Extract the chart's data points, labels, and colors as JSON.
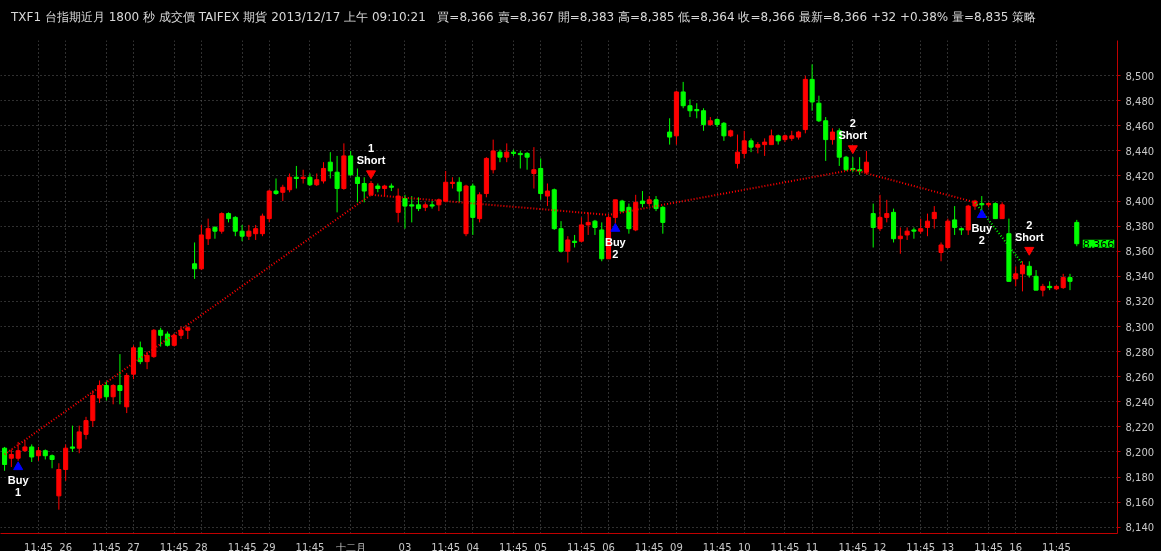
{
  "chart_data": {
    "type": "candlestick",
    "title": "TXF1  台指期近月  1800 秒  成交價  TAIFEX  期貨  2013/12/17  上午 09:10:21",
    "subtitle": "買=8,366  賣=8,367  開=8,383  高=8,385  低=8,364  收=8,366  最新=8,366  +32  +0.38%  量=8,835  策略",
    "annotations": [
      "Buy\n1",
      "Buy\n2",
      "Buy\n2",
      "1\nShort",
      "2\nShort",
      "2\nShort"
    ],
    "categories": [
      null,
      null,
      null,
      null,
      null,
      "11:45",
      null,
      null,
      null,
      "26",
      null,
      null,
      null,
      null,
      null,
      "11:45",
      null,
      null,
      null,
      "27",
      null,
      null,
      null,
      null,
      null,
      "11:45",
      null,
      null,
      null,
      "28",
      null,
      null,
      null,
      null,
      null,
      "11:45",
      null,
      null,
      null,
      "29",
      null,
      null,
      null,
      null,
      null,
      "11:45",
      null,
      null,
      null,
      null,
      null,
      "十二月",
      null,
      null,
      null,
      null,
      null,
      null,
      null,
      "03",
      null,
      null,
      null,
      null,
      null,
      "11:45",
      null,
      null,
      null,
      "04",
      null,
      null,
      null,
      null,
      null,
      "11:45",
      null,
      null,
      null,
      "05",
      null,
      null,
      null,
      null,
      null,
      "11:45",
      null,
      null,
      null,
      "06",
      null,
      null,
      null,
      null,
      null,
      "11:45",
      null,
      null,
      null,
      "09",
      null,
      null,
      null,
      null,
      null,
      "11:45",
      null,
      null,
      null,
      "10",
      null,
      null,
      null,
      null,
      null,
      "11:45",
      null,
      null,
      null,
      "11",
      null,
      null,
      null,
      null,
      null,
      "11:45",
      null,
      null,
      null,
      "12",
      null,
      null,
      null,
      null,
      null,
      "11:45",
      null,
      null,
      null,
      "13",
      null,
      null,
      null,
      null,
      null,
      "11:45",
      null,
      null,
      null,
      "16",
      null,
      null,
      null,
      null,
      null,
      "11:45",
      null,
      null,
      null
    ],
    "ohlc": [
      [
        8203,
        8204,
        8185,
        8190
      ],
      [
        8195,
        8202,
        8188,
        8198
      ],
      [
        8195,
        8208,
        8193,
        8201
      ],
      [
        8201,
        8209,
        8200,
        8204
      ],
      [
        8204,
        8206,
        8192,
        8196
      ],
      [
        8197,
        8204,
        8193,
        8201
      ],
      [
        8201,
        8202,
        8194,
        8197
      ],
      [
        8197,
        8198,
        8187,
        8194
      ],
      [
        8165,
        8191,
        8154,
        8186
      ],
      [
        8186,
        8206,
        8177,
        8203
      ],
      [
        8204,
        8221,
        8200,
        8203
      ],
      [
        8203,
        8221,
        8199,
        8216
      ],
      [
        8214,
        8228,
        8210,
        8225
      ],
      [
        8225,
        8249,
        8220,
        8245
      ],
      [
        8243,
        8257,
        8239,
        8253
      ],
      [
        8253,
        8256,
        8241,
        8244
      ],
      [
        8244,
        8254,
        8238,
        8253
      ],
      [
        8253,
        8278,
        8238,
        8249
      ],
      [
        8236,
        8263,
        8231,
        8261
      ],
      [
        8262,
        8285,
        8258,
        8283
      ],
      [
        8283,
        8288,
        8270,
        8272
      ],
      [
        8272,
        8280,
        8266,
        8277
      ],
      [
        8276,
        8298,
        8275,
        8297
      ],
      [
        8297,
        8299,
        8284,
        8293
      ],
      [
        8294,
        8296,
        8284,
        8285
      ],
      [
        8285,
        8294,
        8284,
        8293
      ],
      [
        8293,
        8300,
        8290,
        8297
      ],
      [
        8297,
        8300,
        8290,
        8299
      ],
      [
        8350,
        8367,
        8338,
        8346
      ],
      [
        8346,
        8381,
        8345,
        8373
      ],
      [
        8370,
        8386,
        8365,
        8378
      ],
      [
        8379,
        8380,
        8370,
        8376
      ],
      [
        8376,
        8391,
        8374,
        8390
      ],
      [
        8390,
        8391,
        8383,
        8386
      ],
      [
        8387,
        8388,
        8372,
        8376
      ],
      [
        8376,
        8381,
        8368,
        8372
      ],
      [
        8372,
        8381,
        8369,
        8376
      ],
      [
        8374,
        8381,
        8369,
        8378
      ],
      [
        8374,
        8390,
        8372,
        8388
      ],
      [
        8386,
        8409,
        8383,
        8408
      ],
      [
        8408,
        8418,
        8405,
        8406
      ],
      [
        8407,
        8413,
        8400,
        8411
      ],
      [
        8409,
        8422,
        8407,
        8419
      ],
      [
        8419,
        8428,
        8410,
        8418
      ],
      [
        8418,
        8425,
        8414,
        8419
      ],
      [
        8419,
        8422,
        8412,
        8413
      ],
      [
        8413,
        8422,
        8412,
        8417
      ],
      [
        8416,
        8431,
        8414,
        8426
      ],
      [
        8431,
        8439,
        8418,
        8424
      ],
      [
        8423,
        8436,
        8391,
        8410
      ],
      [
        8410,
        8446,
        8409,
        8436
      ],
      [
        8436,
        8440,
        8420,
        8421
      ],
      [
        8419,
        8426,
        8399,
        8414
      ],
      [
        8414,
        8419,
        8399,
        8408
      ],
      [
        8405,
        8416,
        8404,
        8414
      ],
      [
        8412,
        8414,
        8407,
        8410
      ],
      [
        8410,
        8413,
        8404,
        8412
      ],
      [
        8412,
        8414,
        8408,
        8411
      ],
      [
        8391,
        8410,
        8383,
        8404
      ],
      [
        8402,
        8405,
        8378,
        8396
      ],
      [
        8397,
        8404,
        8383,
        8396
      ],
      [
        8397,
        8403,
        8392,
        8394
      ],
      [
        8395,
        8399,
        8392,
        8397
      ],
      [
        8397,
        8400,
        8394,
        8396
      ],
      [
        8397,
        8402,
        8392,
        8401
      ],
      [
        8400,
        8424,
        8399,
        8415
      ],
      [
        8414,
        8419,
        8410,
        8415
      ],
      [
        8415,
        8419,
        8399,
        8408
      ],
      [
        8374,
        8413,
        8372,
        8412
      ],
      [
        8412,
        8414,
        8373,
        8387
      ],
      [
        8386,
        8407,
        8383,
        8405
      ],
      [
        8406,
        8435,
        8403,
        8434
      ],
      [
        8425,
        8449,
        8422,
        8440
      ],
      [
        8439,
        8441,
        8431,
        8435
      ],
      [
        8435,
        8446,
        8431,
        8439
      ],
      [
        8439,
        8441,
        8436,
        8438
      ],
      [
        8438,
        8440,
        8426,
        8437
      ],
      [
        8438,
        8439,
        8425,
        8435
      ],
      [
        8422,
        8443,
        8410,
        8425
      ],
      [
        8426,
        8434,
        8401,
        8406
      ],
      [
        8404,
        8414,
        8396,
        8408
      ],
      [
        8409,
        8410,
        8377,
        8378
      ],
      [
        8378,
        8384,
        8359,
        8360
      ],
      [
        8360,
        8372,
        8351,
        8369
      ],
      [
        8368,
        8373,
        8363,
        8367
      ],
      [
        8368,
        8387,
        8367,
        8381
      ],
      [
        8381,
        8391,
        8373,
        8383
      ],
      [
        8384,
        8385,
        8373,
        8379
      ],
      [
        8377,
        8383,
        8352,
        8354
      ],
      [
        8354,
        8388,
        8354,
        8387
      ],
      [
        8387,
        8401,
        8382,
        8401
      ],
      [
        8400,
        8401,
        8391,
        8392
      ],
      [
        8395,
        8398,
        8374,
        8378
      ],
      [
        8377,
        8405,
        8376,
        8399
      ],
      [
        8400,
        8408,
        8395,
        8398
      ],
      [
        8398,
        8404,
        8396,
        8401
      ],
      [
        8401,
        8404,
        8392,
        8394
      ],
      [
        8395,
        8396,
        8374,
        8383
      ],
      [
        8455,
        8466,
        8445,
        8451
      ],
      [
        8452,
        8488,
        8445,
        8487
      ],
      [
        8487,
        8495,
        8474,
        8476
      ],
      [
        8476,
        8481,
        8467,
        8472
      ],
      [
        8473,
        8478,
        8466,
        8472
      ],
      [
        8472,
        8474,
        8456,
        8461
      ],
      [
        8461,
        8467,
        8460,
        8464
      ],
      [
        8465,
        8466,
        8459,
        8461
      ],
      [
        8462,
        8463,
        8448,
        8452
      ],
      [
        8452,
        8457,
        8451,
        8456
      ],
      [
        8430,
        8453,
        8426,
        8439
      ],
      [
        8438,
        8456,
        8434,
        8448
      ],
      [
        8448,
        8450,
        8439,
        8443
      ],
      [
        8443,
        8447,
        8438,
        8445
      ],
      [
        8445,
        8450,
        8436,
        8447
      ],
      [
        8445,
        8457,
        8445,
        8452
      ],
      [
        8452,
        8453,
        8445,
        8448
      ],
      [
        8449,
        8453,
        8447,
        8452
      ],
      [
        8450,
        8456,
        8448,
        8452
      ],
      [
        8451,
        8456,
        8449,
        8455
      ],
      [
        8457,
        8500,
        8454,
        8497
      ],
      [
        8497,
        8509,
        8472,
        8479
      ],
      [
        8478,
        8484,
        8463,
        8464
      ],
      [
        8464,
        8467,
        8432,
        8449
      ],
      [
        8449,
        8458,
        8445,
        8455
      ],
      [
        8456,
        8458,
        8428,
        8435
      ],
      [
        8435,
        8436,
        8424,
        8425
      ],
      [
        8426,
        8435,
        8423,
        8425
      ],
      [
        8425,
        8435,
        8421,
        8424
      ],
      [
        8423,
        8440,
        8421,
        8431
      ],
      [
        8390,
        8398,
        8363,
        8379
      ],
      [
        8378,
        8405,
        8376,
        8387
      ],
      [
        8387,
        8401,
        8383,
        8390
      ],
      [
        8391,
        8394,
        8367,
        8370
      ],
      [
        8370,
        8379,
        8358,
        8372
      ],
      [
        8373,
        8379,
        8369,
        8376
      ],
      [
        8377,
        8379,
        8370,
        8376
      ],
      [
        8376,
        8386,
        8374,
        8378
      ],
      [
        8379,
        8390,
        8372,
        8384
      ],
      [
        8386,
        8396,
        8378,
        8391
      ],
      [
        8359,
        8367,
        8352,
        8365
      ],
      [
        8363,
        8386,
        8362,
        8384
      ],
      [
        8385,
        8396,
        8373,
        8379
      ],
      [
        8378,
        8379,
        8373,
        8377
      ],
      [
        8377,
        8397,
        8373,
        8396
      ],
      [
        8396,
        8401,
        8393,
        8400
      ],
      [
        8398,
        8404,
        8391,
        8397
      ],
      [
        8397,
        8399,
        8395,
        8398
      ],
      [
        8398,
        8399,
        8386,
        8386
      ],
      [
        8386,
        8399,
        8386,
        8397
      ],
      [
        8374,
        8386,
        8336,
        8336
      ],
      [
        8338,
        8348,
        8332,
        8342
      ],
      [
        8342,
        8352,
        8328,
        8349
      ],
      [
        8348,
        8352,
        8339,
        8341
      ],
      [
        8340,
        8345,
        8329,
        8329
      ],
      [
        8329,
        8334,
        8324,
        8332
      ],
      [
        8332,
        8336,
        8329,
        8331
      ],
      [
        8330,
        8333,
        8329,
        8332
      ],
      [
        8331,
        8342,
        8330,
        8339
      ],
      [
        8339,
        8342,
        8329,
        8336
      ],
      [
        8383,
        8385,
        8364,
        8366
      ]
    ],
    "colors": [
      "#00ff00",
      "#ff0000",
      "#ff0000",
      "#ff0000",
      "#00ff00",
      "#ff0000",
      "#00ff00",
      "#00ff00",
      "#ff0000",
      "#ff0000",
      "#00ff00",
      "#ff0000",
      "#ff0000",
      "#ff0000",
      "#ff0000",
      "#00ff00",
      "#ff0000",
      "#00ff00",
      "#ff0000",
      "#ff0000",
      "#00ff00",
      "#ff0000",
      "#ff0000",
      "#00ff00",
      "#00ff00",
      "#ff0000",
      "#ff0000",
      "#ff0000",
      "#00ff00",
      "#ff0000",
      "#ff0000",
      "#00ff00",
      "#ff0000",
      "#00ff00",
      "#00ff00",
      "#00ff00",
      "#ff0000",
      "#ff0000",
      "#ff0000",
      "#ff0000",
      "#00ff00",
      "#ff0000",
      "#ff0000",
      "#00ff00",
      "#ff0000",
      "#00ff00",
      "#ff0000",
      "#ff0000",
      "#00ff00",
      "#00ff00",
      "#ff0000",
      "#00ff00",
      "#00ff00",
      "#00ff00",
      "#ff0000",
      "#00ff00",
      "#ff0000",
      "#00ff00",
      "#ff0000",
      "#00ff00",
      "#00ff00",
      "#00ff00",
      "#ff0000",
      "#00ff00",
      "#ff0000",
      "#ff0000",
      "#ff0000",
      "#00ff00",
      "#ff0000",
      "#00ff00",
      "#ff0000",
      "#ff0000",
      "#ff0000",
      "#00ff00",
      "#ff0000",
      "#00ff00",
      "#00ff00",
      "#00ff00",
      "#ff0000",
      "#00ff00",
      "#ff0000",
      "#00ff00",
      "#00ff00",
      "#ff0000",
      "#00ff00",
      "#ff0000",
      "#ff0000",
      "#00ff00",
      "#00ff00",
      "#ff0000",
      "#ff0000",
      "#00ff00",
      "#00ff00",
      "#ff0000",
      "#00ff00",
      "#ff0000",
      "#00ff00",
      "#00ff00",
      "#00ff00",
      "#ff0000",
      "#00ff00",
      "#00ff00",
      "#00ff00",
      "#00ff00",
      "#ff0000",
      "#00ff00",
      "#00ff00",
      "#ff0000",
      "#ff0000",
      "#ff0000",
      "#00ff00",
      "#ff0000",
      "#ff0000",
      "#ff0000",
      "#00ff00",
      "#ff0000",
      "#ff0000",
      "#ff0000",
      "#ff0000",
      "#00ff00",
      "#00ff00",
      "#00ff00",
      "#ff0000",
      "#00ff00",
      "#00ff00",
      "#00ff00",
      "#00ff00",
      "#ff0000",
      "#00ff00",
      "#ff0000",
      "#ff0000",
      "#00ff00",
      "#ff0000",
      "#ff0000",
      "#00ff00",
      "#ff0000",
      "#ff0000",
      "#ff0000",
      "#ff0000",
      "#ff0000",
      "#00ff00",
      "#00ff00",
      "#ff0000",
      "#ff0000",
      "#00ff00",
      "#ff0000",
      "#00ff00",
      "#ff0000",
      "#00ff00",
      "#ff0000",
      "#ff0000",
      "#00ff00",
      "#00ff00",
      "#ff0000",
      "#00ff00",
      "#ff0000",
      "#ff0000",
      "#00ff00",
      "#00ff00"
    ],
    "value_labels": [
      null,
      null,
      null,
      null,
      null,
      null,
      null,
      null,
      null,
      null,
      null,
      null,
      null,
      null,
      null,
      null,
      null,
      null,
      null,
      null,
      null,
      null,
      null,
      null,
      null,
      null,
      null,
      null,
      null,
      null,
      null,
      null,
      null,
      null,
      null,
      null,
      null,
      null,
      null,
      null,
      null,
      null,
      null,
      null,
      null,
      null,
      null,
      null,
      null,
      null,
      null,
      null,
      null,
      null,
      null,
      null,
      null,
      null,
      null,
      null,
      null,
      null,
      null,
      null,
      null,
      null,
      null,
      null,
      null,
      null,
      null,
      null,
      null,
      null,
      null,
      null,
      null,
      null,
      null,
      null,
      null,
      null,
      null,
      null,
      null,
      null,
      null,
      null,
      null,
      null,
      null,
      null,
      null,
      null,
      null,
      null,
      null,
      null,
      null,
      null,
      null,
      null,
      null,
      null,
      null,
      null,
      null,
      null,
      null,
      null,
      null,
      null,
      null,
      null,
      null,
      null,
      null,
      null,
      null,
      null,
      null,
      null,
      null,
      null,
      null,
      null,
      null,
      null,
      null,
      null,
      null,
      null,
      null,
      null,
      null,
      null,
      null,
      null,
      null,
      null,
      null,
      null,
      null,
      null,
      null,
      null,
      null,
      null,
      null,
      null,
      null,
      null,
      null,
      null,
      null,
      null,
      null,
      null,
      "8,366"
    ],
    "series": [
      {
        "type": "line",
        "color": "#ff0000",
        "line_style": "dotted",
        "values": [
          8198,
          null,
          null,
          null,
          null,
          null,
          null,
          null,
          null,
          null,
          null,
          null,
          null,
          null,
          null,
          null,
          null,
          null,
          null,
          null,
          null,
          null,
          null,
          null,
          null,
          null,
          null,
          null,
          null,
          null,
          null,
          null,
          null,
          null,
          null,
          null,
          null,
          null,
          null,
          null,
          null,
          null,
          null,
          null,
          null,
          null,
          null,
          null,
          null,
          null,
          null,
          null,
          null,
          null,
          8405,
          null,
          null,
          null,
          null,
          null,
          null,
          null,
          null,
          null,
          null,
          null,
          null,
          null,
          null,
          null,
          null,
          null,
          null,
          null,
          null,
          null,
          null,
          null,
          null,
          null,
          null,
          null,
          null,
          null,
          null,
          null,
          null,
          null,
          null,
          8389,
          null,
          null,
          null,
          null,
          null,
          null,
          null,
          null,
          null,
          null,
          null,
          null,
          null,
          null,
          null,
          null,
          null,
          null,
          null,
          null,
          null,
          null,
          null,
          null,
          null,
          null,
          null,
          null,
          null,
          null,
          null,
          null,
          null,
          null,
          null,
          8425,
          null,
          null,
          null,
          null,
          null,
          null,
          null,
          null,
          null,
          null,
          null,
          null,
          null,
          null,
          null,
          null,
          null,
          8399,
          null,
          null,
          null,
          null,
          null,
          null,
          null,
          null,
          null,
          null,
          null,
          null,
          null,
          null,
          null
        ]
      },
      {
        "type": "line",
        "color": "#00ff00",
        "line_style": "dotted",
        "values": [
          null,
          null,
          null,
          null,
          null,
          null,
          null,
          null,
          null,
          null,
          null,
          null,
          null,
          null,
          null,
          null,
          null,
          null,
          null,
          null,
          null,
          null,
          null,
          null,
          null,
          null,
          null,
          null,
          null,
          null,
          null,
          null,
          null,
          null,
          null,
          null,
          null,
          null,
          null,
          null,
          null,
          null,
          null,
          null,
          null,
          null,
          null,
          null,
          null,
          null,
          null,
          null,
          null,
          null,
          null,
          null,
          null,
          null,
          null,
          null,
          null,
          null,
          null,
          null,
          null,
          null,
          null,
          null,
          null,
          null,
          null,
          null,
          null,
          null,
          null,
          null,
          null,
          null,
          null,
          null,
          null,
          null,
          null,
          null,
          null,
          null,
          null,
          null,
          null,
          null,
          null,
          null,
          null,
          null,
          null,
          null,
          null,
          null,
          null,
          null,
          null,
          null,
          null,
          null,
          null,
          null,
          null,
          null,
          null,
          null,
          null,
          null,
          null,
          null,
          null,
          null,
          null,
          null,
          null,
          null,
          null,
          null,
          null,
          null,
          null,
          null,
          null,
          null,
          null,
          null,
          null,
          null,
          null,
          null,
          null,
          null,
          null,
          null,
          null,
          null,
          null,
          null,
          null,
          8399,
          null,
          null,
          null,
          null,
          null,
          null,
          8350,
          null,
          null,
          null,
          null,
          null,
          null,
          null,
          null
        ]
      },
      {
        "type": "scatter",
        "color": "#0000ff",
        "marker": "triangle",
        "values": [
          null,
          null,
          8188,
          null,
          null,
          null,
          null,
          null,
          null,
          null,
          null,
          null,
          null,
          null,
          null,
          null,
          null,
          null,
          null,
          null,
          null,
          null,
          null,
          null,
          null,
          null,
          null,
          null,
          null,
          null,
          null,
          null,
          null,
          null,
          null,
          null,
          null,
          null,
          null,
          null,
          null,
          null,
          null,
          null,
          null,
          null,
          null,
          null,
          null,
          null,
          null,
          null,
          null,
          null,
          null,
          null,
          null,
          null,
          null,
          null,
          null,
          null,
          null,
          null,
          null,
          null,
          null,
          null,
          null,
          null,
          null,
          null,
          null,
          null,
          null,
          null,
          null,
          null,
          null,
          null,
          null,
          null,
          null,
          null,
          null,
          null,
          null,
          null,
          null,
          null,
          8378,
          null,
          null,
          null,
          null,
          null,
          null,
          null,
          null,
          null,
          null,
          null,
          null,
          null,
          null,
          null,
          null,
          null,
          null,
          null,
          null,
          null,
          null,
          null,
          null,
          null,
          null,
          null,
          null,
          null,
          null,
          null,
          null,
          null,
          null,
          null,
          null,
          null,
          null,
          null,
          null,
          null,
          null,
          null,
          null,
          null,
          null,
          null,
          null,
          null,
          null,
          null,
          null,
          null,
          8389,
          null,
          null,
          null,
          null,
          null,
          null,
          null,
          null,
          null,
          null,
          null,
          null,
          null,
          null
        ]
      },
      {
        "type": "scatter",
        "color": "#ff0000",
        "marker": "triangle",
        "values": [
          null,
          null,
          null,
          null,
          null,
          null,
          null,
          null,
          null,
          null,
          null,
          null,
          null,
          null,
          null,
          null,
          null,
          null,
          null,
          null,
          null,
          null,
          null,
          null,
          null,
          null,
          null,
          null,
          null,
          null,
          null,
          null,
          null,
          null,
          null,
          null,
          null,
          null,
          null,
          null,
          null,
          null,
          null,
          null,
          null,
          null,
          null,
          null,
          null,
          null,
          null,
          null,
          null,
          null,
          8422,
          null,
          null,
          null,
          null,
          null,
          null,
          null,
          null,
          null,
          null,
          null,
          null,
          null,
          null,
          null,
          null,
          null,
          null,
          null,
          null,
          null,
          null,
          null,
          null,
          null,
          null,
          null,
          null,
          null,
          null,
          null,
          null,
          null,
          null,
          null,
          null,
          null,
          null,
          null,
          null,
          null,
          null,
          null,
          null,
          null,
          null,
          null,
          null,
          null,
          null,
          null,
          null,
          null,
          null,
          null,
          null,
          null,
          null,
          null,
          null,
          null,
          null,
          null,
          null,
          null,
          null,
          null,
          null,
          null,
          null,
          8442,
          null,
          null,
          null,
          null,
          null,
          null,
          null,
          null,
          null,
          null,
          null,
          null,
          null,
          null,
          null,
          null,
          null,
          null,
          null,
          null,
          null,
          null,
          null,
          null,
          null,
          8361,
          null,
          null,
          null,
          null,
          null,
          null,
          null
        ]
      }
    ],
    "ylim": [
      8135,
      8528
    ],
    "yticks": [
      {
        "value": 8140,
        "label": "8,140"
      },
      {
        "value": 8160,
        "label": "8,160"
      },
      {
        "value": 8180,
        "label": "8,180"
      },
      {
        "value": 8200,
        "label": "8,200"
      },
      {
        "value": 8220,
        "label": "8,220"
      },
      {
        "value": 8240,
        "label": "8,240"
      },
      {
        "value": 8260,
        "label": "8,260"
      },
      {
        "value": 8280,
        "label": "8,280"
      },
      {
        "value": 8300,
        "label": "8,300"
      },
      {
        "value": 8320,
        "label": "8,320"
      },
      {
        "value": 8340,
        "label": "8,340"
      },
      {
        "value": 8360,
        "label": "8,360"
      },
      {
        "value": 8380,
        "label": "8,380"
      },
      {
        "value": 8400,
        "label": "8,400"
      },
      {
        "value": 8420,
        "label": "8,420"
      },
      {
        "value": 8440,
        "label": "8,440"
      },
      {
        "value": 8460,
        "label": "8,460"
      },
      {
        "value": 8480,
        "label": "8,480"
      },
      {
        "value": 8500,
        "label": "8,500"
      }
    ],
    "grid": true
  }
}
